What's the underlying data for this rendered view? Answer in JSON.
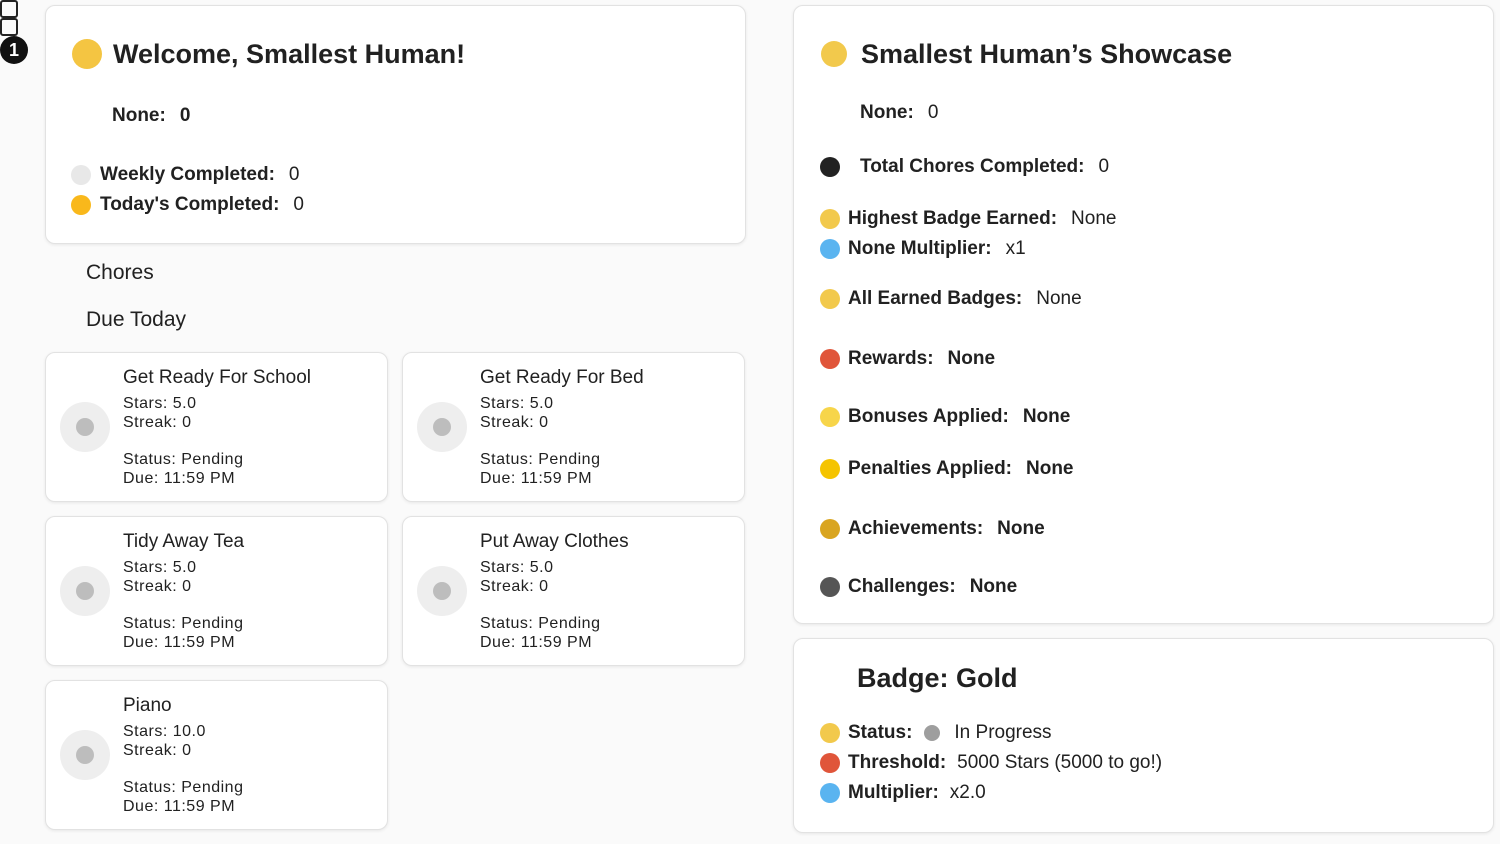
{
  "welcome": {
    "title": "Welcome, Smallest Human!",
    "stats": [
      {
        "label": "None:",
        "value": "0"
      },
      {
        "label": "Weekly Completed:",
        "value": "0"
      },
      {
        "label": "Today's Completed:",
        "value": "0"
      }
    ]
  },
  "sections": [
    "Chores",
    "Due Today"
  ],
  "chores": [
    {
      "name": "Get Ready For School",
      "stars": "Stars: 5.0",
      "streak": "Streak: 0",
      "status": "Status: Pending",
      "due": "Due: 11:59 PM"
    },
    {
      "name": "Get Ready For Bed",
      "stars": "Stars: 5.0",
      "streak": "Streak: 0",
      "status": "Status: Pending",
      "due": "Due: 11:59 PM"
    },
    {
      "name": "Tidy Away Tea",
      "stars": "Stars: 5.0",
      "streak": "Streak: 0",
      "status": "Status: Pending",
      "due": "Due: 11:59 PM"
    },
    {
      "name": "Put Away Clothes",
      "stars": "Stars: 5.0",
      "streak": "Streak: 0",
      "status": "Status: Pending",
      "due": "Due: 11:59 PM"
    },
    {
      "name": "Piano",
      "stars": "Stars: 10.0",
      "streak": "Streak: 0",
      "status": "Status: Pending",
      "due": "Due: 11:59 PM"
    }
  ],
  "showcase": {
    "title": "Smallest Human’s Showcase",
    "rows": [
      {
        "label": "None:",
        "value": "0"
      },
      {
        "label": "Total Chores Completed:",
        "value": "0"
      },
      {
        "label": "Highest Badge Earned:",
        "value": "None"
      },
      {
        "label": "None Multiplier:",
        "value": "x1"
      },
      {
        "label": "All Earned Badges:",
        "value": "None"
      },
      {
        "label": "Rewards:",
        "value": "None"
      },
      {
        "label": "Bonuses Applied:",
        "value": "None"
      },
      {
        "label": "Penalties Applied:",
        "value": "None"
      },
      {
        "label": "Achievements:",
        "value": "None"
      },
      {
        "label": "Challenges:",
        "value": "None"
      }
    ]
  },
  "badge": {
    "number": "1",
    "title": "Badge: Gold",
    "rows": [
      {
        "label": "Status:",
        "value": "In Progress"
      },
      {
        "label": "Threshold:",
        "value": "5000 Stars (5000 to go!)"
      },
      {
        "label": "Multiplier:",
        "value": "x2.0"
      }
    ]
  }
}
